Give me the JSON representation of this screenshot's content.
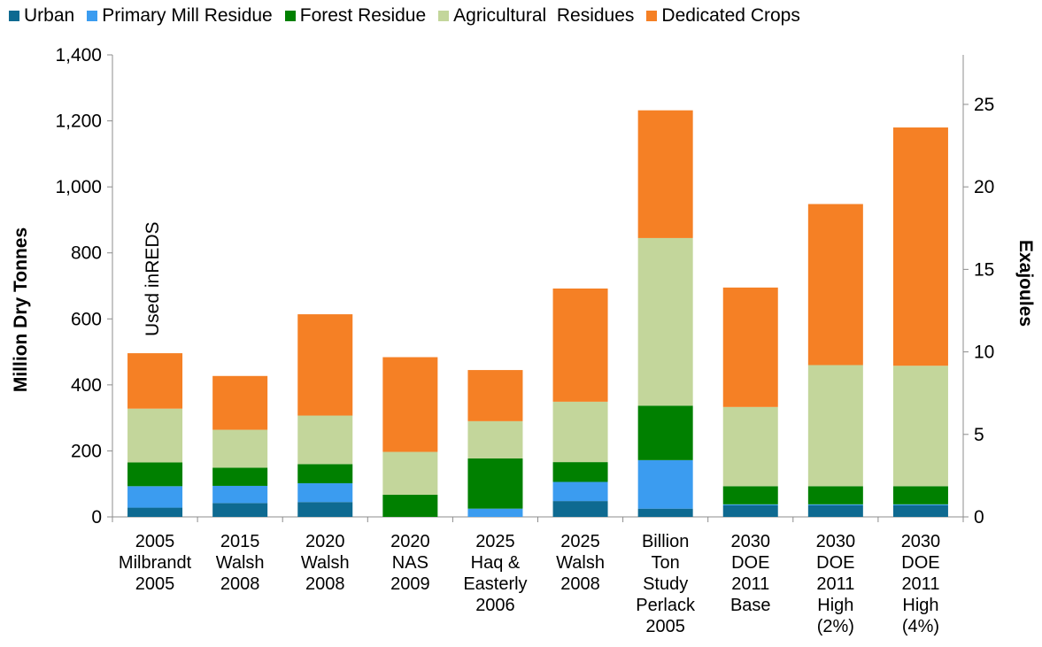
{
  "chart_data": {
    "type": "bar",
    "stacked": true,
    "title": "",
    "xlabel": "",
    "ylabel": "Million Dry Tonnes",
    "y2label": "Exajoules",
    "ylim": [
      0,
      1400
    ],
    "y2lim": [
      0,
      28
    ],
    "yticks": [
      "0",
      "200",
      "400",
      "600",
      "800",
      "1,000",
      "1,200",
      "1,400"
    ],
    "y2ticks": [
      "0",
      "5",
      "10",
      "15",
      "20",
      "25"
    ],
    "legend_position": "top",
    "grid": false,
    "annotation": "Used inREDS",
    "categories": [
      [
        "2005",
        "Milbrandt",
        "2005"
      ],
      [
        "2015",
        "Walsh",
        "2008"
      ],
      [
        "2020",
        "Walsh",
        "2008"
      ],
      [
        "2020",
        "NAS",
        "2009"
      ],
      [
        "2025",
        "Haq &",
        "Easterly",
        "2006"
      ],
      [
        "2025",
        "Walsh",
        "2008"
      ],
      [
        "Billion",
        "Ton",
        "Study",
        "Perlack",
        "2005"
      ],
      [
        "2030",
        "DOE",
        "2011",
        "Base"
      ],
      [
        "2030",
        "DOE",
        "2011",
        "High",
        "(2%)"
      ],
      [
        "2030",
        "DOE",
        "2011",
        "High",
        "(4%)"
      ]
    ],
    "series": [
      {
        "name": "Urban",
        "color": "#0e6a91",
        "values": [
          28,
          42,
          45,
          0,
          0,
          48,
          25,
          35,
          35,
          35
        ]
      },
      {
        "name": "Primary Mill Residue",
        "color": "#3b9cf0",
        "values": [
          65,
          52,
          57,
          0,
          25,
          58,
          147,
          3,
          3,
          3
        ]
      },
      {
        "name": "Forest Residue",
        "color": "#008000",
        "values": [
          72,
          55,
          58,
          67,
          152,
          60,
          165,
          55,
          55,
          55
        ]
      },
      {
        "name": "Agricultural  Residues",
        "color": "#c3d69b",
        "values": [
          163,
          115,
          147,
          130,
          113,
          183,
          508,
          240,
          367,
          365
        ]
      },
      {
        "name": "Dedicated Crops",
        "color": "#f58025",
        "values": [
          168,
          163,
          307,
          287,
          155,
          343,
          387,
          362,
          488,
          722
        ]
      }
    ]
  }
}
